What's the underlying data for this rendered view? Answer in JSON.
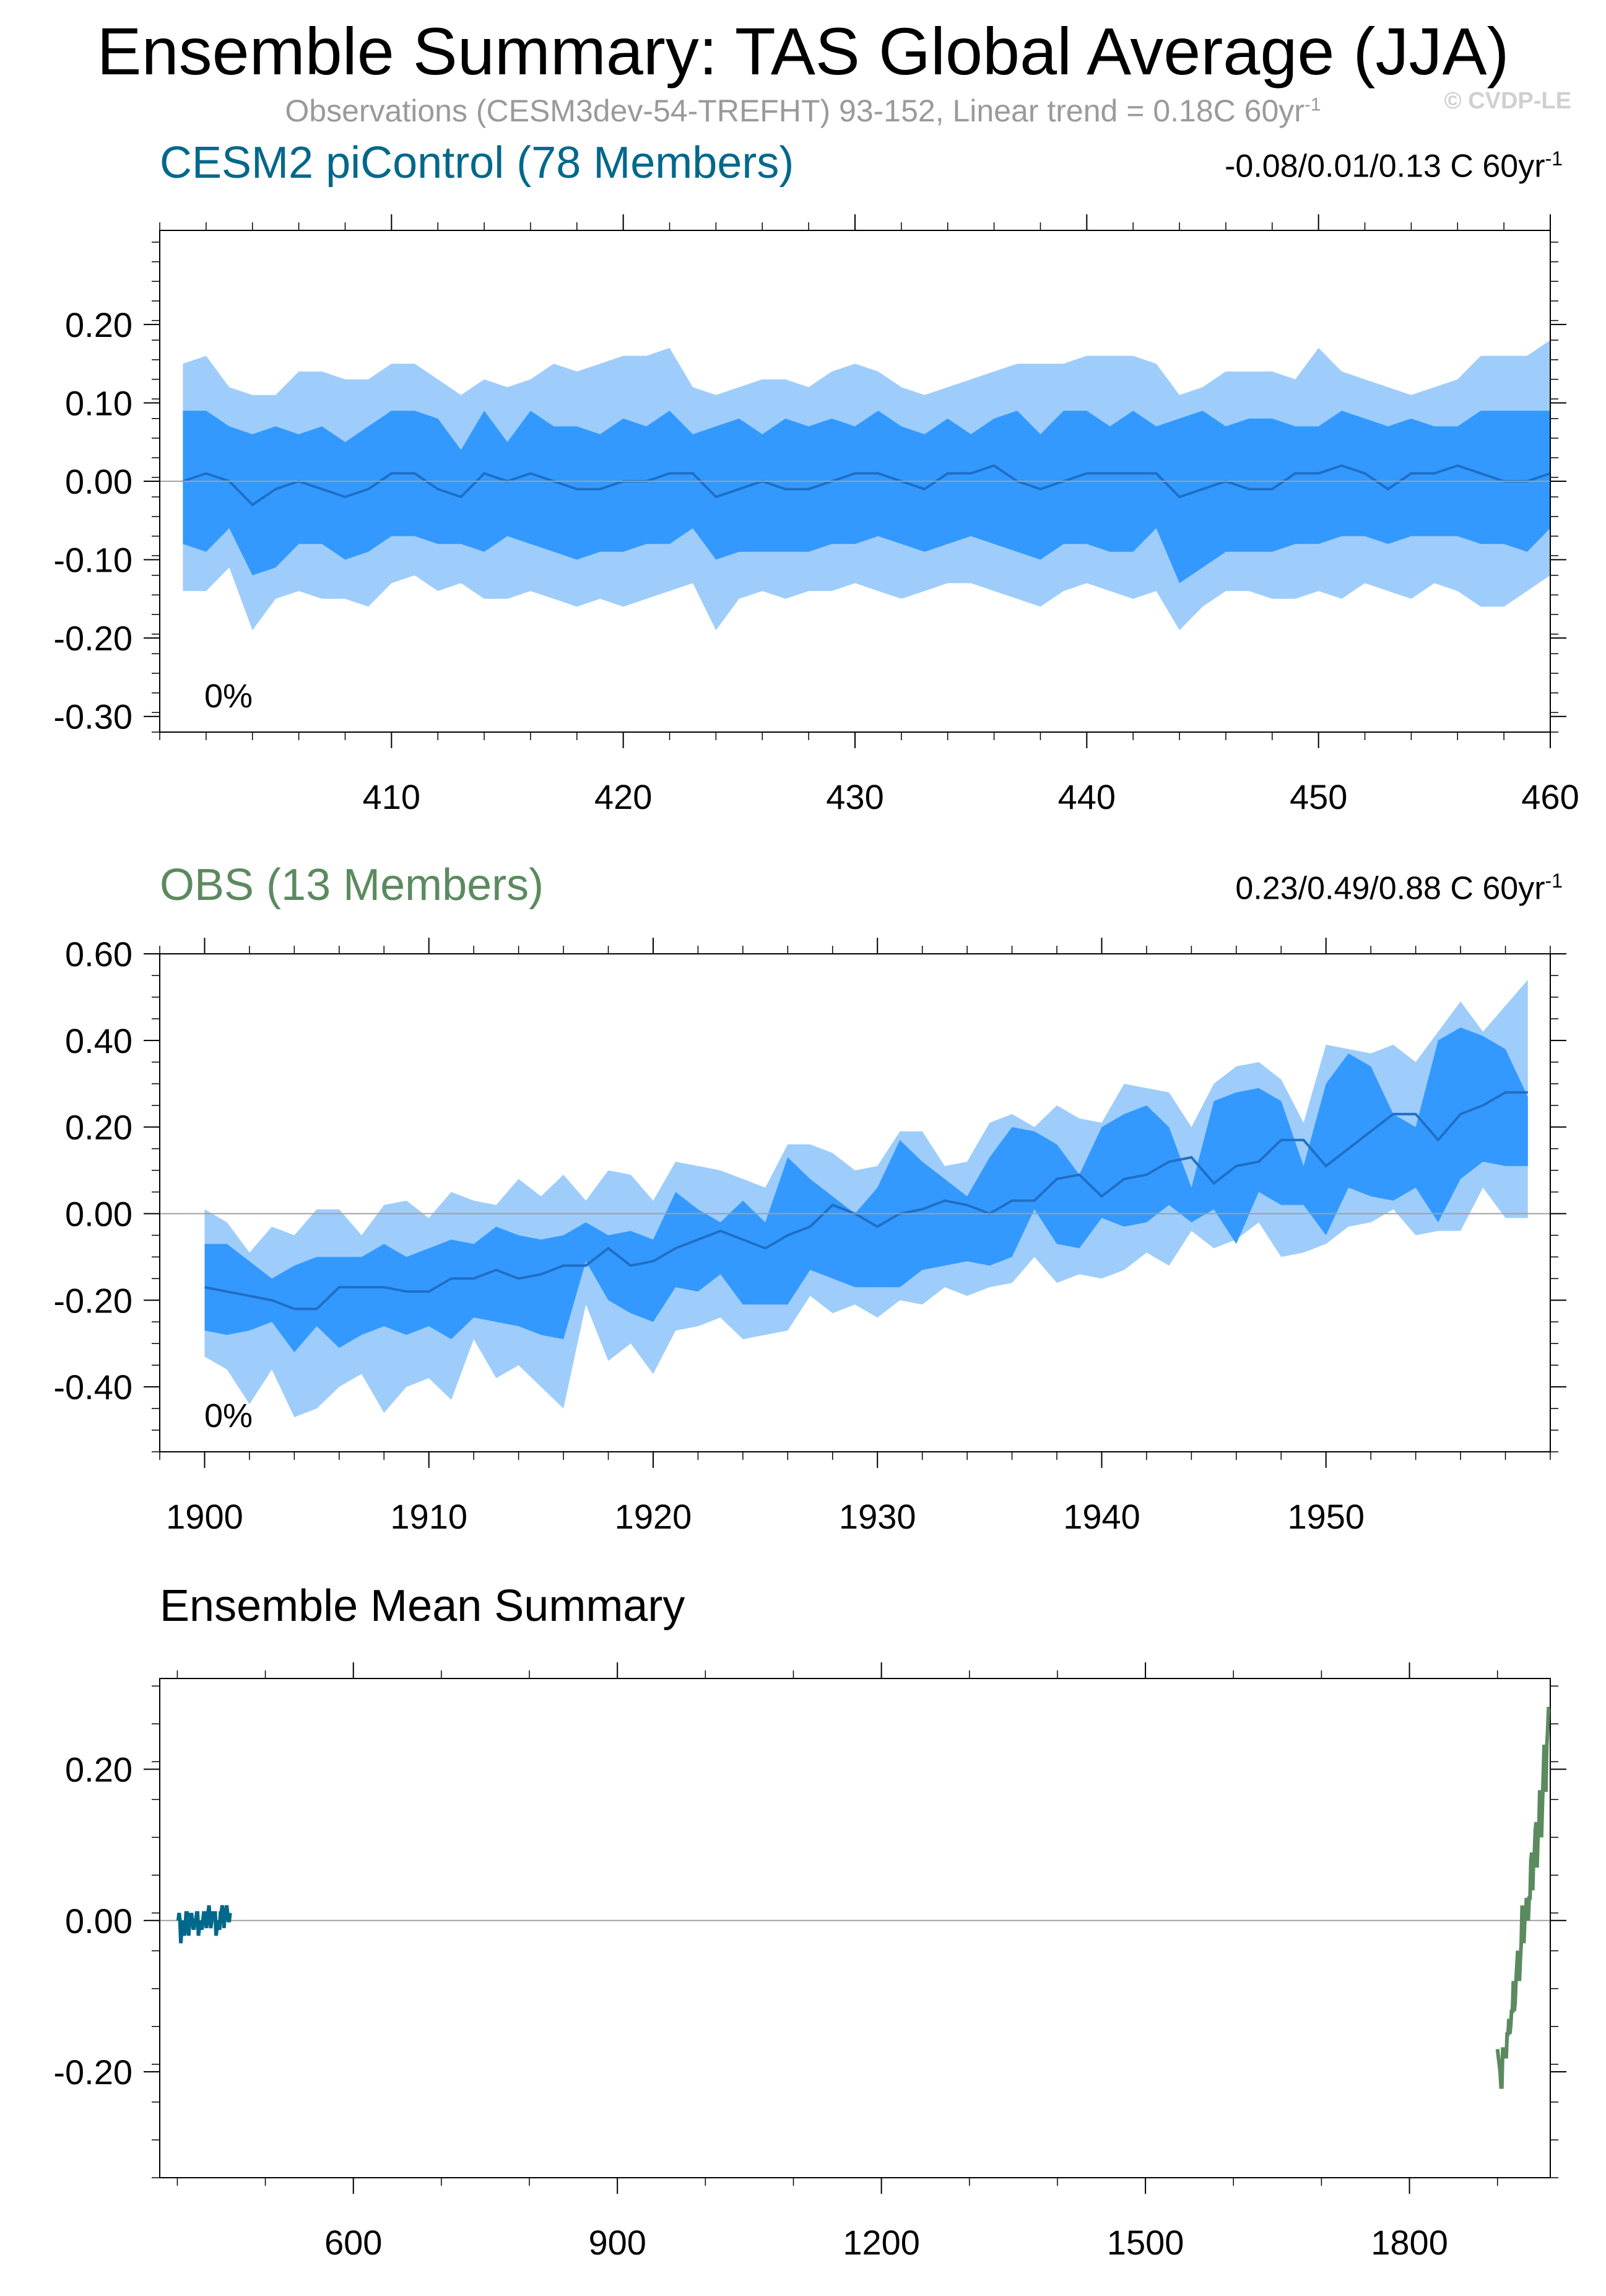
{
  "title": "Ensemble Summary: TAS Global Average (JJA)",
  "subtitle": "Observations (CESM3dev-54-TREFHT) 93-152, Linear trend = 0.18C 60yr",
  "subtitle_sup": "-1",
  "watermark": "© CVDP-LE",
  "colors": {
    "band_outer": "#9ecdfb",
    "band_inner": "#3399ff",
    "mean_line": "#1f6fc5",
    "picontrol_title": "#00688b",
    "obs_title": "#5b8a5f",
    "axis": "#000000",
    "zero_line": "#a0a0a0"
  },
  "panels": {
    "picontrol": {
      "title": "CESM2 piControl (78 Members)",
      "trend": "-0.08/0.01/0.13 C 60yr",
      "trend_sup": "-1",
      "percent": "0%"
    },
    "obs": {
      "title": "OBS (13 Members)",
      "trend": "0.23/0.49/0.88 C 60yr",
      "trend_sup": "-1",
      "percent": "0%"
    },
    "mean": {
      "title": "Ensemble Mean Summary"
    }
  },
  "chart_data": [
    {
      "type": "area",
      "name": "picontrol",
      "x": [
        401,
        402,
        403,
        404,
        405,
        406,
        407,
        408,
        409,
        410,
        411,
        412,
        413,
        414,
        415,
        416,
        417,
        418,
        419,
        420,
        421,
        422,
        423,
        424,
        425,
        426,
        427,
        428,
        429,
        430,
        431,
        432,
        433,
        434,
        435,
        436,
        437,
        438,
        439,
        440,
        441,
        442,
        443,
        444,
        445,
        446,
        447,
        448,
        449,
        450,
        451,
        452,
        453,
        454,
        455,
        456,
        457,
        458,
        459,
        460
      ],
      "p10": [
        -0.14,
        -0.14,
        -0.11,
        -0.19,
        -0.15,
        -0.14,
        -0.15,
        -0.15,
        -0.16,
        -0.13,
        -0.12,
        -0.14,
        -0.13,
        -0.15,
        -0.15,
        -0.14,
        -0.15,
        -0.16,
        -0.15,
        -0.16,
        -0.15,
        -0.14,
        -0.13,
        -0.19,
        -0.15,
        -0.14,
        -0.15,
        -0.14,
        -0.14,
        -0.13,
        -0.14,
        -0.15,
        -0.14,
        -0.13,
        -0.13,
        -0.14,
        -0.15,
        -0.16,
        -0.14,
        -0.13,
        -0.14,
        -0.15,
        -0.14,
        -0.19,
        -0.16,
        -0.14,
        -0.14,
        -0.15,
        -0.15,
        -0.14,
        -0.15,
        -0.13,
        -0.14,
        -0.15,
        -0.13,
        -0.14,
        -0.16,
        -0.16,
        -0.14,
        -0.12
      ],
      "p25": [
        -0.08,
        -0.09,
        -0.06,
        -0.12,
        -0.11,
        -0.08,
        -0.08,
        -0.1,
        -0.09,
        -0.07,
        -0.07,
        -0.08,
        -0.08,
        -0.09,
        -0.07,
        -0.08,
        -0.09,
        -0.1,
        -0.09,
        -0.09,
        -0.08,
        -0.08,
        -0.06,
        -0.1,
        -0.09,
        -0.09,
        -0.09,
        -0.09,
        -0.08,
        -0.08,
        -0.07,
        -0.08,
        -0.09,
        -0.08,
        -0.07,
        -0.08,
        -0.09,
        -0.1,
        -0.08,
        -0.08,
        -0.09,
        -0.09,
        -0.06,
        -0.13,
        -0.11,
        -0.09,
        -0.09,
        -0.09,
        -0.08,
        -0.08,
        -0.07,
        -0.07,
        -0.08,
        -0.07,
        -0.07,
        -0.07,
        -0.08,
        -0.08,
        -0.09,
        -0.06
      ],
      "mean": [
        0.0,
        0.01,
        0.0,
        -0.03,
        -0.01,
        0.0,
        -0.01,
        -0.02,
        -0.01,
        0.01,
        0.01,
        -0.01,
        -0.02,
        0.01,
        0.0,
        0.01,
        0.0,
        -0.01,
        -0.01,
        0.0,
        0.0,
        0.01,
        0.01,
        -0.02,
        -0.01,
        0.0,
        -0.01,
        -0.01,
        0.0,
        0.01,
        0.01,
        0.0,
        -0.01,
        0.01,
        0.01,
        0.02,
        0.0,
        -0.01,
        0.0,
        0.01,
        0.01,
        0.01,
        0.01,
        -0.02,
        -0.01,
        0.0,
        -0.01,
        -0.01,
        0.01,
        0.01,
        0.02,
        0.01,
        -0.01,
        0.01,
        0.01,
        0.02,
        0.01,
        0.0,
        0.0,
        0.01
      ],
      "p75": [
        0.09,
        0.09,
        0.07,
        0.06,
        0.07,
        0.06,
        0.07,
        0.05,
        0.07,
        0.09,
        0.09,
        0.08,
        0.04,
        0.09,
        0.05,
        0.09,
        0.07,
        0.07,
        0.06,
        0.08,
        0.07,
        0.09,
        0.06,
        0.07,
        0.08,
        0.06,
        0.08,
        0.07,
        0.08,
        0.07,
        0.09,
        0.07,
        0.06,
        0.08,
        0.06,
        0.08,
        0.09,
        0.06,
        0.09,
        0.09,
        0.07,
        0.09,
        0.07,
        0.08,
        0.09,
        0.07,
        0.08,
        0.08,
        0.07,
        0.07,
        0.09,
        0.08,
        0.07,
        0.08,
        0.07,
        0.07,
        0.09,
        0.09,
        0.09,
        0.09
      ],
      "p90": [
        0.15,
        0.16,
        0.12,
        0.11,
        0.11,
        0.14,
        0.14,
        0.13,
        0.13,
        0.15,
        0.15,
        0.13,
        0.11,
        0.13,
        0.12,
        0.13,
        0.15,
        0.14,
        0.15,
        0.16,
        0.16,
        0.17,
        0.12,
        0.11,
        0.12,
        0.13,
        0.13,
        0.12,
        0.14,
        0.15,
        0.14,
        0.12,
        0.11,
        0.12,
        0.13,
        0.14,
        0.15,
        0.15,
        0.15,
        0.16,
        0.16,
        0.16,
        0.15,
        0.11,
        0.12,
        0.14,
        0.14,
        0.14,
        0.13,
        0.17,
        0.14,
        0.13,
        0.12,
        0.11,
        0.12,
        0.13,
        0.16,
        0.16,
        0.16,
        0.18
      ],
      "xlim": [
        400,
        460
      ],
      "ylim": [
        -0.32,
        0.32
      ],
      "xticks": [
        410,
        420,
        430,
        440,
        450,
        460
      ],
      "xtick_labels": [
        "410",
        "420",
        "430",
        "440",
        "450",
        "460"
      ],
      "yticks": [
        0.2,
        0.1,
        0.0,
        -0.1,
        -0.2,
        -0.3
      ],
      "ytick_labels": [
        "0.20",
        "0.10",
        "0.00",
        "-0.10",
        "-0.20",
        "-0.30"
      ]
    },
    {
      "type": "area",
      "name": "obs",
      "x": [
        1900,
        1901,
        1902,
        1903,
        1904,
        1905,
        1906,
        1907,
        1908,
        1909,
        1910,
        1911,
        1912,
        1913,
        1914,
        1915,
        1916,
        1917,
        1918,
        1919,
        1920,
        1921,
        1922,
        1923,
        1924,
        1925,
        1926,
        1927,
        1928,
        1929,
        1930,
        1931,
        1932,
        1933,
        1934,
        1935,
        1936,
        1937,
        1938,
        1939,
        1940,
        1941,
        1942,
        1943,
        1944,
        1945,
        1946,
        1947,
        1948,
        1949,
        1950,
        1951,
        1952,
        1953,
        1954,
        1955,
        1956,
        1957,
        1958,
        1959
      ],
      "p10": [
        -0.33,
        -0.36,
        -0.44,
        -0.36,
        -0.47,
        -0.45,
        -0.4,
        -0.37,
        -0.46,
        -0.4,
        -0.38,
        -0.43,
        -0.29,
        -0.38,
        -0.35,
        -0.4,
        -0.45,
        -0.21,
        -0.34,
        -0.3,
        -0.37,
        -0.27,
        -0.26,
        -0.24,
        -0.29,
        -0.28,
        -0.27,
        -0.19,
        -0.23,
        -0.21,
        -0.24,
        -0.2,
        -0.21,
        -0.17,
        -0.19,
        -0.17,
        -0.16,
        -0.1,
        -0.16,
        -0.14,
        -0.15,
        -0.13,
        -0.09,
        -0.12,
        -0.04,
        -0.08,
        -0.06,
        -0.02,
        -0.1,
        -0.09,
        -0.07,
        -0.03,
        -0.02,
        0.01,
        -0.05,
        -0.04,
        -0.04,
        0.06,
        -0.01,
        -0.01
      ],
      "p25": [
        -0.27,
        -0.28,
        -0.27,
        -0.25,
        -0.32,
        -0.26,
        -0.31,
        -0.28,
        -0.26,
        -0.28,
        -0.26,
        -0.29,
        -0.24,
        -0.25,
        -0.26,
        -0.28,
        -0.29,
        -0.11,
        -0.2,
        -0.23,
        -0.25,
        -0.17,
        -0.18,
        -0.14,
        -0.21,
        -0.21,
        -0.21,
        -0.13,
        -0.15,
        -0.17,
        -0.17,
        -0.17,
        -0.13,
        -0.12,
        -0.11,
        -0.12,
        -0.1,
        0.01,
        -0.07,
        -0.08,
        -0.01,
        -0.03,
        -0.02,
        0.02,
        -0.02,
        0.01,
        -0.07,
        0.05,
        0.02,
        0.02,
        -0.05,
        0.06,
        0.04,
        0.03,
        0.06,
        -0.02,
        0.08,
        0.12,
        0.11,
        0.11
      ],
      "mean": [
        -0.17,
        -0.18,
        -0.19,
        -0.2,
        -0.22,
        -0.22,
        -0.17,
        -0.17,
        -0.17,
        -0.18,
        -0.18,
        -0.15,
        -0.15,
        -0.13,
        -0.15,
        -0.14,
        -0.12,
        -0.12,
        -0.08,
        -0.12,
        -0.11,
        -0.08,
        -0.06,
        -0.04,
        -0.06,
        -0.08,
        -0.05,
        -0.03,
        0.02,
        0.0,
        -0.03,
        0.0,
        0.01,
        0.03,
        0.02,
        0.0,
        0.03,
        0.03,
        0.08,
        0.09,
        0.04,
        0.08,
        0.09,
        0.12,
        0.13,
        0.07,
        0.11,
        0.12,
        0.17,
        0.17,
        0.11,
        0.15,
        0.19,
        0.23,
        0.23,
        0.17,
        0.23,
        0.25,
        0.28,
        0.28
      ],
      "p75": [
        -0.07,
        -0.07,
        -0.11,
        -0.15,
        -0.12,
        -0.1,
        -0.1,
        -0.1,
        -0.07,
        -0.1,
        -0.08,
        -0.06,
        -0.07,
        -0.03,
        -0.05,
        -0.06,
        -0.05,
        -0.02,
        -0.05,
        -0.04,
        -0.06,
        0.05,
        0.01,
        -0.02,
        0.03,
        -0.02,
        0.13,
        0.08,
        0.04,
        0.0,
        0.06,
        0.17,
        0.12,
        0.08,
        0.04,
        0.13,
        0.2,
        0.19,
        0.16,
        0.09,
        0.2,
        0.23,
        0.25,
        0.2,
        0.06,
        0.26,
        0.28,
        0.29,
        0.26,
        0.11,
        0.3,
        0.37,
        0.34,
        0.23,
        0.2,
        0.4,
        0.43,
        0.41,
        0.38,
        0.27
      ],
      "p90": [
        0.01,
        -0.02,
        -0.09,
        -0.03,
        -0.05,
        0.01,
        0.01,
        -0.05,
        0.02,
        0.03,
        -0.01,
        0.05,
        0.03,
        0.02,
        0.08,
        0.04,
        0.09,
        0.03,
        0.1,
        0.09,
        0.03,
        0.12,
        0.11,
        0.1,
        0.08,
        0.06,
        0.16,
        0.16,
        0.14,
        0.1,
        0.11,
        0.19,
        0.19,
        0.11,
        0.12,
        0.21,
        0.23,
        0.2,
        0.25,
        0.22,
        0.21,
        0.3,
        0.29,
        0.28,
        0.2,
        0.3,
        0.34,
        0.35,
        0.31,
        0.21,
        0.39,
        0.38,
        0.37,
        0.39,
        0.35,
        0.42,
        0.49,
        0.42,
        0.48,
        0.54
      ],
      "xlim": [
        1898,
        1960
      ],
      "ylim": [
        -0.55,
        0.6
      ],
      "xticks": [
        1900,
        1910,
        1920,
        1930,
        1940,
        1950
      ],
      "xtick_labels": [
        "1900",
        "1910",
        "1920",
        "1930",
        "1940",
        "1950"
      ],
      "yticks": [
        0.6,
        0.4,
        0.2,
        0.0,
        -0.2,
        -0.4
      ],
      "ytick_labels": [
        "0.60",
        "0.40",
        "0.20",
        "0.00",
        "-0.20",
        "-0.40"
      ]
    },
    {
      "type": "line",
      "name": "ensemble-mean",
      "series": [
        "picontrol",
        "obs"
      ],
      "xlim": [
        380,
        1960
      ],
      "ylim": [
        -0.34,
        0.32
      ],
      "xticks": [
        600,
        900,
        1200,
        1500,
        1800
      ],
      "xtick_labels": [
        "600",
        "900",
        "1200",
        "1500",
        "1800"
      ],
      "yticks": [
        0.2,
        0.0,
        -0.2
      ],
      "ytick_labels": [
        "0.20",
        "0.00",
        "-0.20"
      ]
    }
  ]
}
